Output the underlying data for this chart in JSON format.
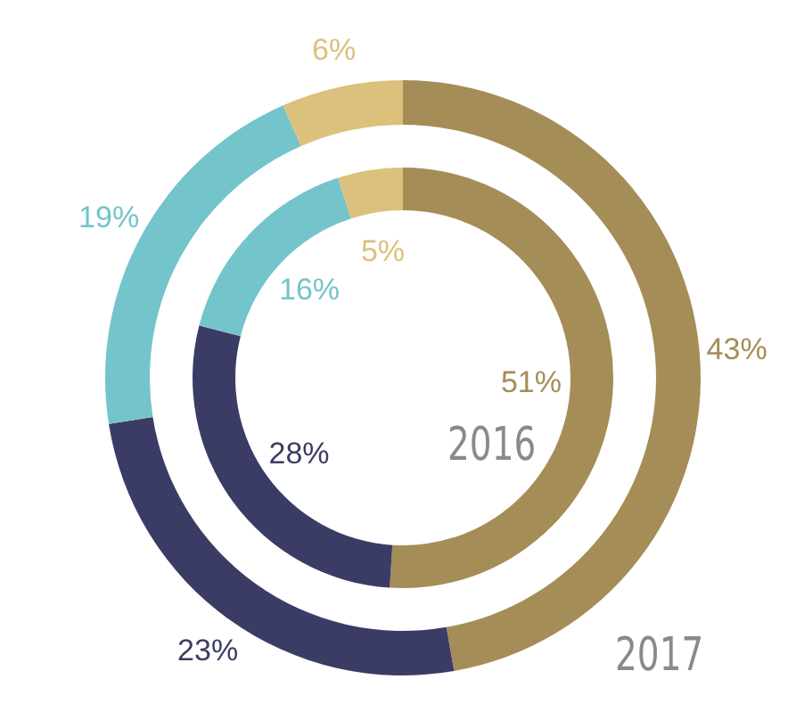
{
  "chart_data": {
    "type": "donut",
    "categories": [
      null,
      null,
      null,
      null
    ],
    "colors": [
      "#a58d58",
      "#3b3c65",
      "#74c4cb",
      "#dcc17c"
    ],
    "series": [
      {
        "name": "2017",
        "values": [
          43,
          23,
          19,
          6
        ],
        "value_labels": [
          "43%",
          "23%",
          "19%",
          "6%"
        ]
      },
      {
        "name": "2016",
        "values": [
          51,
          28,
          16,
          5
        ],
        "value_labels": [
          "51%",
          "28%",
          "16%",
          "5%"
        ]
      }
    ]
  }
}
